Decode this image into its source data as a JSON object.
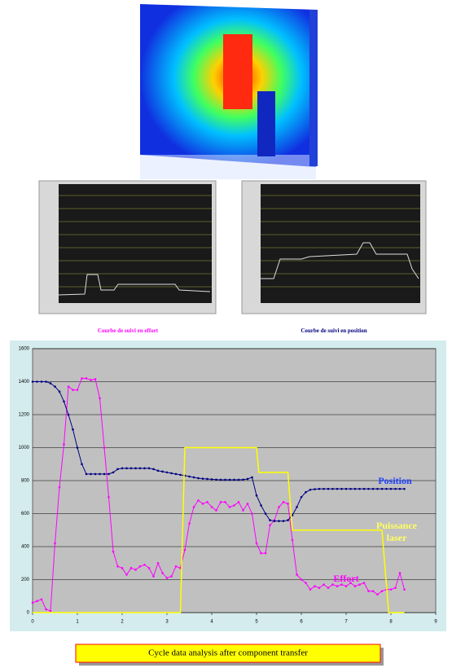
{
  "captions": {
    "effort": "Courbe de suivi en effort",
    "position": "Courbe de suivi en position"
  },
  "chart_data": {
    "type": "line",
    "x": [
      0,
      0.1,
      0.2,
      0.3,
      0.4,
      0.5,
      0.6,
      0.7,
      0.8,
      0.9,
      1,
      1.1,
      1.2,
      1.3,
      1.4,
      1.5,
      1.6,
      1.7,
      1.8,
      1.9,
      2,
      2.1,
      2.2,
      2.3,
      2.4,
      2.5,
      2.6,
      2.7,
      2.8,
      2.9,
      3,
      3.1,
      3.2,
      3.3,
      3.4,
      3.5,
      3.6,
      3.7,
      3.8,
      3.9,
      4,
      4.1,
      4.2,
      4.3,
      4.4,
      4.5,
      4.6,
      4.7,
      4.8,
      4.9,
      5,
      5.1,
      5.2,
      5.3,
      5.4,
      5.5,
      5.6,
      5.7,
      5.8,
      5.9,
      6,
      6.1,
      6.2,
      6.3,
      6.4,
      6.5,
      6.6,
      6.7,
      6.8,
      6.9,
      7,
      7.1,
      7.2,
      7.3,
      7.4,
      7.5,
      7.6,
      7.7,
      7.8,
      7.9,
      8,
      8.1,
      8.2,
      8.3
    ],
    "series": [
      {
        "name": "Effort",
        "color": "#ff00ff",
        "values": [
          60,
          70,
          80,
          20,
          10,
          420,
          760,
          1020,
          1370,
          1350,
          1350,
          1420,
          1420,
          1410,
          1415,
          1300,
          1000,
          700,
          370,
          280,
          270,
          230,
          270,
          260,
          280,
          290,
          270,
          220,
          300,
          240,
          210,
          220,
          280,
          270,
          380,
          540,
          640,
          680,
          660,
          670,
          640,
          620,
          670,
          670,
          640,
          650,
          670,
          620,
          660,
          600,
          420,
          360,
          360,
          530,
          560,
          640,
          670,
          660,
          440,
          230,
          200,
          180,
          140,
          160,
          150,
          170,
          150,
          170,
          160,
          170,
          160,
          180,
          160,
          170,
          180,
          130,
          130,
          110,
          130,
          140,
          140,
          150,
          240,
          140
        ]
      },
      {
        "name": "Position",
        "color": "#000080",
        "values": [
          1400,
          1400,
          1400,
          1400,
          1390,
          1370,
          1340,
          1280,
          1200,
          1110,
          1000,
          900,
          840,
          840,
          840,
          840,
          840,
          840,
          850,
          870,
          875,
          875,
          875,
          875,
          875,
          875,
          875,
          870,
          860,
          855,
          850,
          845,
          840,
          835,
          830,
          825,
          820,
          815,
          812,
          810,
          808,
          806,
          805,
          805,
          805,
          805,
          805,
          806,
          810,
          820,
          710,
          650,
          600,
          560,
          555,
          555,
          555,
          560,
          590,
          640,
          700,
          730,
          745,
          748,
          750,
          750,
          750,
          750,
          750,
          750,
          750,
          750,
          750,
          750,
          750,
          750,
          750,
          750,
          750,
          750,
          750,
          750,
          750,
          750
        ]
      },
      {
        "name": "Puissance laser",
        "color": "#ffff00",
        "x": [
          0,
          3.3,
          3.4,
          5.0,
          5.05,
          5.7,
          5.8,
          7.8,
          7.95,
          8.3
        ],
        "values": [
          0,
          0,
          1000,
          1000,
          850,
          850,
          500,
          500,
          0,
          0
        ]
      }
    ],
    "xlim": [
      0,
      9
    ],
    "xticks": [
      0,
      1,
      2,
      3,
      4,
      5,
      6,
      7,
      8,
      9
    ],
    "ylim": [
      0,
      1600
    ],
    "yticks": [
      0,
      200,
      400,
      600,
      800,
      1000,
      1200,
      1400,
      1600
    ],
    "grid": true
  },
  "banner": "Cycle data analysis after component transfer"
}
